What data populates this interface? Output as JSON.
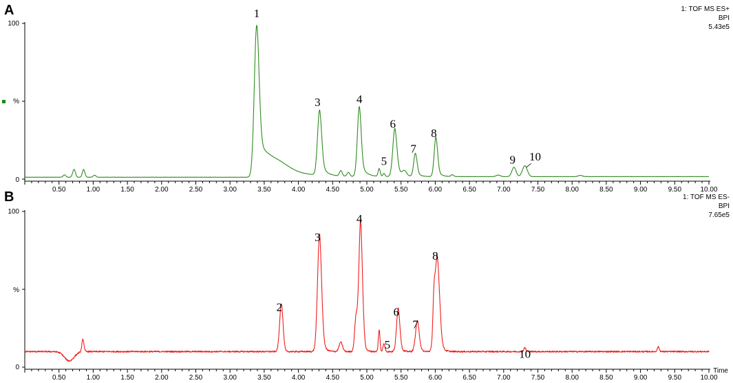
{
  "panels": [
    {
      "letter": "A",
      "info": [
        "1: TOF MS ES+",
        "BPI",
        "5.43e5"
      ],
      "color": "#2e8b1f",
      "y_ticks": [
        "100",
        "%",
        "0"
      ],
      "x_title": "",
      "marker_color": "#1a8a1a"
    },
    {
      "letter": "B",
      "info": [
        "1: TOF MS ES-",
        "BPI",
        "7.65e5"
      ],
      "color": "#ee1c1c",
      "y_ticks": [
        "100",
        "%",
        "0"
      ],
      "x_title": "Time",
      "marker_color": ""
    }
  ],
  "chart_data": [
    {
      "type": "line",
      "title": "",
      "xlabel": "",
      "ylabel": "%",
      "xlim": [
        0.0,
        10.0
      ],
      "ylim": [
        0,
        100
      ],
      "x_ticks": [
        "0.50",
        "1.00",
        "1.50",
        "2.00",
        "2.50",
        "3.00",
        "3.50",
        "4.00",
        "4.50",
        "5.00",
        "5.50",
        "6.00",
        "6.50",
        "7.00",
        "7.50",
        "8.00",
        "8.50",
        "9.00",
        "9.50",
        "10.00"
      ],
      "baseline": 1.2,
      "series": [
        {
          "peaks": [
            {
              "t": 0.58,
              "h": 1.5,
              "w": 0.02
            },
            {
              "t": 0.72,
              "h": 5.0,
              "w": 0.02
            },
            {
              "t": 0.86,
              "h": 5.0,
              "w": 0.018
            },
            {
              "t": 1.02,
              "h": 1.3,
              "w": 0.02
            },
            {
              "t": 3.39,
              "h": 97.0,
              "w": 0.035,
              "tail": 0.28
            },
            {
              "t": 3.72,
              "h": 3.0,
              "w": 0.15
            },
            {
              "t": 4.31,
              "h": 42.0,
              "w": 0.03,
              "tail": 0.07
            },
            {
              "t": 4.62,
              "h": 3.5,
              "w": 0.02
            },
            {
              "t": 4.73,
              "h": 2.5,
              "w": 0.02
            },
            {
              "t": 4.89,
              "h": 45.0,
              "w": 0.028,
              "tail": 0.07
            },
            {
              "t": 5.18,
              "h": 5.0,
              "w": 0.015
            },
            {
              "t": 5.25,
              "h": 2.0,
              "w": 0.015
            },
            {
              "t": 5.41,
              "h": 31.0,
              "w": 0.03,
              "tail": 0.07
            },
            {
              "t": 5.55,
              "h": 3.0,
              "w": 0.03
            },
            {
              "t": 5.71,
              "h": 15.0,
              "w": 0.025,
              "tail": 0.05
            },
            {
              "t": 6.01,
              "h": 25.5,
              "w": 0.025,
              "tail": 0.05
            },
            {
              "t": 6.25,
              "h": 1.2,
              "w": 0.02
            },
            {
              "t": 6.92,
              "h": 1.0,
              "w": 0.03
            },
            {
              "t": 7.15,
              "h": 6.0,
              "w": 0.03
            },
            {
              "t": 7.31,
              "h": 7.0,
              "w": 0.035
            },
            {
              "t": 8.12,
              "h": 0.8,
              "w": 0.03
            }
          ]
        }
      ],
      "annotations": [
        {
          "text": "1",
          "x": 3.39,
          "y": 104
        },
        {
          "text": "3",
          "x": 4.28,
          "y": 47
        },
        {
          "text": "4",
          "x": 4.89,
          "y": 49
        },
        {
          "text": "5",
          "x": 5.25,
          "y": 9
        },
        {
          "text": "6",
          "x": 5.38,
          "y": 33
        },
        {
          "text": "7",
          "x": 5.68,
          "y": 17
        },
        {
          "text": "8",
          "x": 5.98,
          "y": 27
        },
        {
          "text": "9",
          "x": 7.13,
          "y": 10
        },
        {
          "text": "10",
          "x": 7.46,
          "y": 12
        }
      ]
    },
    {
      "type": "line",
      "title": "",
      "xlabel": "Time",
      "ylabel": "%",
      "xlim": [
        0.0,
        10.0
      ],
      "ylim": [
        0,
        100
      ],
      "x_ticks": [
        "0.50",
        "1.00",
        "1.50",
        "2.00",
        "2.50",
        "3.00",
        "3.50",
        "4.00",
        "4.50",
        "5.00",
        "5.50",
        "6.00",
        "6.50",
        "7.00",
        "7.50",
        "8.00",
        "8.50",
        "9.00",
        "9.50",
        "10.00"
      ],
      "baseline": 10,
      "series": [
        {
          "peaks": [
            {
              "t": 0.65,
              "h": -6.0,
              "w": 0.07
            },
            {
              "t": 0.85,
              "h": 8.0,
              "w": 0.015
            },
            {
              "t": 3.75,
              "h": 31.0,
              "w": 0.025
            },
            {
              "t": 4.31,
              "h": 76.0,
              "w": 0.03,
              "tail": 0.04
            },
            {
              "t": 4.62,
              "h": 6.0,
              "w": 0.025
            },
            {
              "t": 4.84,
              "h": 20.0,
              "w": 0.02
            },
            {
              "t": 4.91,
              "h": 85.0,
              "w": 0.028,
              "tail": 0.03
            },
            {
              "t": 5.18,
              "h": 14.0,
              "w": 0.012
            },
            {
              "t": 5.25,
              "h": 5.0,
              "w": 0.015
            },
            {
              "t": 5.46,
              "h": 28.0,
              "w": 0.025,
              "tail": 0.03
            },
            {
              "t": 5.74,
              "h": 20.0,
              "w": 0.028,
              "tail": 0.03
            },
            {
              "t": 5.98,
              "h": 20.0,
              "w": 0.015
            },
            {
              "t": 6.03,
              "h": 62.0,
              "w": 0.035,
              "tail": 0.04
            },
            {
              "t": 7.31,
              "h": 2.5,
              "w": 0.015
            },
            {
              "t": 9.26,
              "h": 3.0,
              "w": 0.015
            }
          ]
        }
      ],
      "annotations": [
        {
          "text": "2",
          "x": 3.72,
          "y": 36
        },
        {
          "text": "3",
          "x": 4.28,
          "y": 81
        },
        {
          "text": "4",
          "x": 4.89,
          "y": 93
        },
        {
          "text": "5",
          "x": 5.3,
          "y": 12
        },
        {
          "text": "6",
          "x": 5.43,
          "y": 33
        },
        {
          "text": "7",
          "x": 5.71,
          "y": 25
        },
        {
          "text": "8",
          "x": 6.0,
          "y": 69
        },
        {
          "text": "10",
          "x": 7.31,
          "y": 6
        }
      ]
    }
  ]
}
